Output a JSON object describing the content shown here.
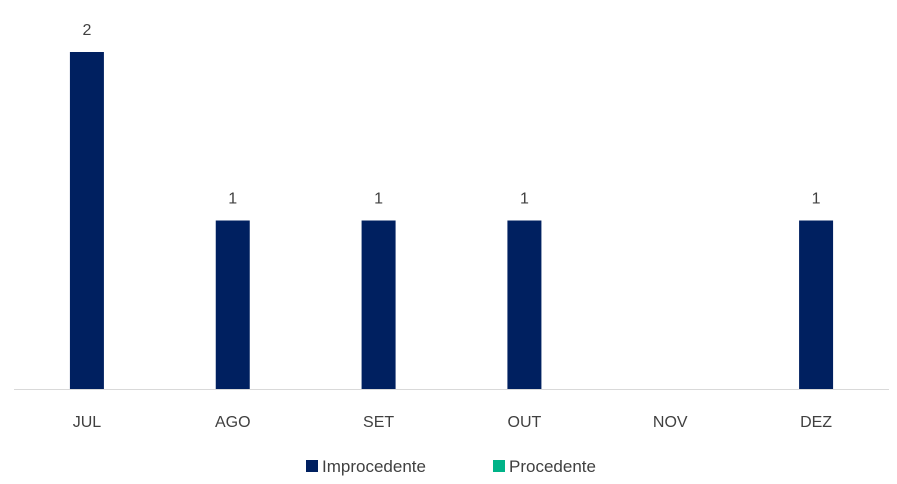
{
  "chart_data": {
    "type": "bar",
    "categories": [
      "JUL",
      "AGO",
      "SET",
      "OUT",
      "NOV",
      "DEZ"
    ],
    "series": [
      {
        "name": "Improcedente",
        "color": "#002060",
        "values": [
          2,
          1,
          1,
          1,
          0,
          1
        ]
      },
      {
        "name": "Procedente",
        "color": "#00B388",
        "values": [
          0,
          0,
          0,
          0,
          0,
          0
        ]
      }
    ],
    "data_labels": [
      2,
      1,
      1,
      1,
      null,
      1
    ],
    "ylim": [
      0,
      2
    ],
    "grid": false,
    "legend_position": "bottom"
  }
}
